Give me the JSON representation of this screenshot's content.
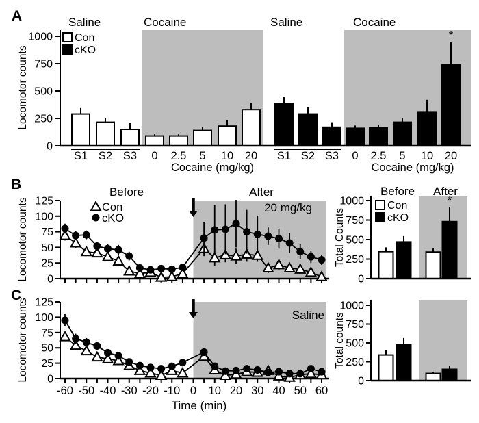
{
  "figure": {
    "panel_labels": {
      "a": "A",
      "b": "B",
      "c": "C"
    },
    "colors": {
      "shade": "#bdbdbd",
      "con_fill": "#ffffff",
      "cko_fill": "#000000",
      "axis": "#000000",
      "background": "#ffffff"
    }
  },
  "chart_data": [
    {
      "id": "panel-a",
      "type": "bar",
      "ylabel": "Locomotor counts",
      "yticks": [
        "0",
        "250",
        "500",
        "750",
        "1000"
      ],
      "ylim": [
        0,
        1050
      ],
      "xlabel": "Cocaine (mg/kg)",
      "legend": [
        "Con",
        "cKO"
      ],
      "sections": [
        {
          "title": "Saline",
          "shaded": false
        },
        {
          "title": "Cocaine",
          "shaded": true
        },
        {
          "title": "Saline",
          "shaded": false
        },
        {
          "title": "Cocaine",
          "shaded": true
        }
      ],
      "categories": [
        "S1",
        "S2",
        "S3",
        "0",
        "2.5",
        "5",
        "10",
        "20"
      ],
      "series": [
        {
          "name": "Con",
          "fill": "white",
          "values": [
            290,
            215,
            150,
            90,
            90,
            140,
            180,
            330
          ],
          "errors": [
            55,
            40,
            60,
            15,
            15,
            30,
            55,
            60
          ],
          "sig": []
        },
        {
          "name": "cKO",
          "fill": "black",
          "values": [
            385,
            290,
            170,
            160,
            165,
            215,
            310,
            740
          ],
          "errors": [
            65,
            60,
            45,
            25,
            25,
            40,
            110,
            210
          ],
          "sig": [
            7
          ]
        }
      ],
      "sig_symbol": "*"
    },
    {
      "id": "panel-b-line",
      "type": "line",
      "ylabel": "Locomotor counts",
      "yticks": [
        "0",
        "25",
        "50",
        "75",
        "100",
        "125"
      ],
      "ylim": [
        0,
        125
      ],
      "phase_labels": [
        "Before",
        "After"
      ],
      "annotation": "20 mg/kg",
      "legend_labels": [
        "Con",
        "cKO"
      ],
      "x": [
        -60,
        -55,
        -50,
        -45,
        -40,
        -35,
        -30,
        -25,
        -20,
        -15,
        -10,
        -5,
        5,
        10,
        15,
        20,
        25,
        30,
        35,
        40,
        45,
        50,
        55,
        60
      ],
      "series": [
        {
          "name": "Con",
          "marker": "triangle",
          "values": [
            69,
            57,
            43,
            41,
            35,
            28,
            12,
            8,
            10,
            2,
            3,
            8,
            48,
            33,
            38,
            36,
            39,
            37,
            17,
            22,
            17,
            15,
            10,
            3
          ],
          "errors": [
            8,
            8,
            7,
            6,
            6,
            6,
            5,
            4,
            4,
            3,
            3,
            4,
            12,
            12,
            12,
            12,
            12,
            10,
            8,
            8,
            7,
            6,
            5,
            4
          ]
        },
        {
          "name": "cKO",
          "marker": "circle",
          "values": [
            80,
            69,
            70,
            52,
            48,
            46,
            36,
            17,
            14,
            16,
            15,
            18,
            65,
            78,
            79,
            88,
            75,
            71,
            68,
            64,
            57,
            43,
            35,
            30
          ],
          "errors": [
            8,
            7,
            7,
            7,
            7,
            8,
            7,
            5,
            4,
            5,
            5,
            6,
            25,
            40,
            40,
            38,
            35,
            30,
            14,
            16,
            16,
            12,
            10,
            8
          ]
        }
      ]
    },
    {
      "id": "panel-b-bars",
      "type": "bar",
      "ylabel": "Total Counts",
      "yticks": [
        "0",
        "250",
        "500",
        "750",
        "1000"
      ],
      "ylim": [
        0,
        1050
      ],
      "phase_labels": [
        "Before",
        "After"
      ],
      "legend": [
        "Con",
        "cKO"
      ],
      "groups": [
        {
          "phase": "Before",
          "values": [
            345,
            470
          ],
          "errors": [
            55,
            75
          ],
          "sig": [
            false,
            false
          ]
        },
        {
          "phase": "After",
          "values": [
            340,
            730
          ],
          "errors": [
            55,
            190
          ],
          "sig": [
            false,
            true
          ]
        }
      ],
      "sig_symbol": "*"
    },
    {
      "id": "panel-c-line",
      "type": "line",
      "ylabel": "Locomotor counts",
      "yticks": [
        "0",
        "25",
        "50",
        "75",
        "100",
        "125"
      ],
      "ylim": [
        0,
        125
      ],
      "annotation": "Saline",
      "xlabel": "Time (min)",
      "xtick_labels": [
        "-60",
        "-50",
        "-40",
        "-30",
        "-20",
        "-10",
        "0",
        "10",
        "20",
        "30",
        "40",
        "50",
        "60"
      ],
      "x": [
        -60,
        -55,
        -50,
        -45,
        -40,
        -35,
        -30,
        -25,
        -20,
        -15,
        -10,
        -5,
        5,
        10,
        15,
        20,
        25,
        30,
        35,
        40,
        45,
        50,
        55,
        60
      ],
      "series": [
        {
          "name": "Con",
          "marker": "triangle",
          "values": [
            68,
            54,
            45,
            35,
            32,
            29,
            21,
            13,
            9,
            5,
            13,
            9,
            36,
            14,
            5,
            7,
            11,
            10,
            13,
            4,
            2,
            6,
            8,
            6
          ],
          "errors": [
            7,
            6,
            6,
            5,
            5,
            5,
            4,
            4,
            3,
            3,
            4,
            4,
            6,
            4,
            3,
            3,
            3,
            3,
            4,
            2,
            2,
            3,
            3,
            3
          ]
        },
        {
          "name": "cKO",
          "marker": "circle",
          "values": [
            95,
            65,
            59,
            53,
            42,
            37,
            27,
            21,
            18,
            16,
            20,
            26,
            43,
            20,
            12,
            13,
            16,
            14,
            10,
            11,
            8,
            8,
            16,
            11
          ],
          "errors": [
            10,
            8,
            7,
            7,
            6,
            6,
            5,
            5,
            4,
            4,
            5,
            6,
            6,
            5,
            4,
            4,
            4,
            4,
            3,
            3,
            3,
            3,
            5,
            4
          ]
        }
      ]
    },
    {
      "id": "panel-c-bars",
      "type": "bar",
      "ylabel": "Total counts",
      "yticks": [
        "0",
        "250",
        "500",
        "750",
        "1000"
      ],
      "ylim": [
        0,
        1050
      ],
      "groups": [
        {
          "phase": "",
          "values": [
            340,
            475
          ],
          "errors": [
            60,
            90
          ],
          "sig": [
            false,
            false
          ]
        },
        {
          "phase": "",
          "values": [
            95,
            150
          ],
          "errors": [
            18,
            45
          ],
          "sig": [
            false,
            false
          ]
        }
      ],
      "sig_symbol": "*"
    }
  ]
}
